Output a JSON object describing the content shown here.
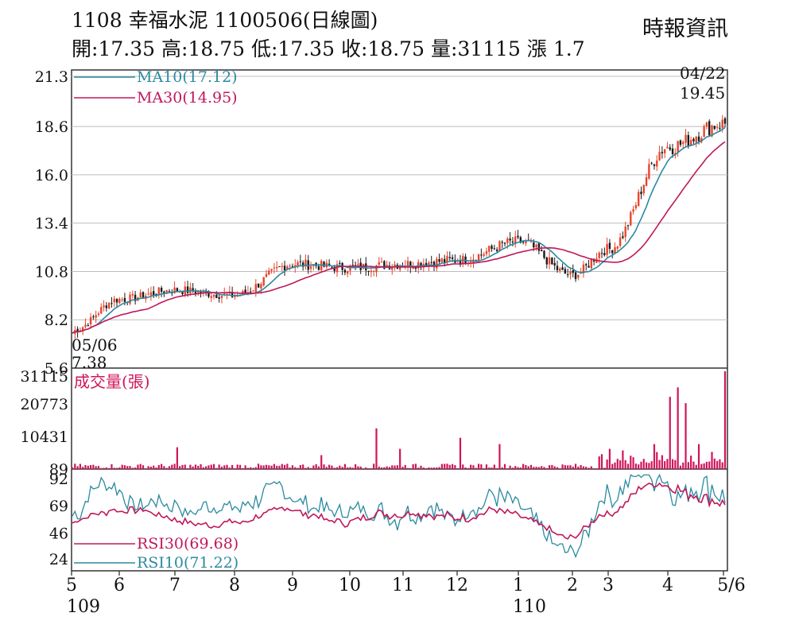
{
  "header": {
    "code": "1108",
    "name": "幸福水泥",
    "date": "1100506",
    "chart_kind": "(日線圖)",
    "source": "時報資訊"
  },
  "quote": {
    "open_label": "開",
    "open": "17.35",
    "high_label": "高",
    "high": "18.75",
    "low_label": "低",
    "low": "17.35",
    "close_label": "收",
    "close": "18.75",
    "volume_label": "量",
    "volume": "31115",
    "change_label": "漲",
    "change": "1.7"
  },
  "colors": {
    "up": "#e8452c",
    "down": "#1a1a1a",
    "ma10": "#2a8aa0",
    "ma30": "#c0185a",
    "volume": "#d0155a",
    "rsi30": "#c0185a",
    "rsi10": "#2a8aa0",
    "grid": "#bdbdbd",
    "frame": "#333333"
  },
  "chart_data": [
    {
      "type": "candlestick",
      "panel": "price",
      "y_ticks": [
        "21.3",
        "18.6",
        "16.0",
        "13.4",
        "10.8",
        "8.2",
        "5.6"
      ],
      "ylim": [
        5.6,
        21.3
      ],
      "grid": true,
      "legend": [
        {
          "key": "ma10",
          "label": "MA10(17.12)"
        },
        {
          "key": "ma30",
          "label": "MA30(14.95)"
        }
      ],
      "annotations": [
        {
          "date": "04/22",
          "value": "19.45",
          "note": "high"
        },
        {
          "date": "05/06",
          "value": "7.38",
          "note": "low"
        }
      ],
      "monthly_close": [
        {
          "month": "5",
          "value": 7.6
        },
        {
          "month": "6",
          "value": 9.3
        },
        {
          "month": "7",
          "value": 9.8
        },
        {
          "month": "8",
          "value": 9.5
        },
        {
          "month": "9",
          "value": 11.2
        },
        {
          "month": "10",
          "value": 11.0
        },
        {
          "month": "11",
          "value": 11.2
        },
        {
          "month": "12",
          "value": 11.4
        },
        {
          "month": "1",
          "value": 12.4
        },
        {
          "month": "2",
          "value": 10.6
        },
        {
          "month": "3",
          "value": 12.0
        },
        {
          "month": "4",
          "value": 17.5
        },
        {
          "month": "5/6",
          "value": 18.75
        }
      ]
    },
    {
      "type": "bar",
      "panel": "volume",
      "label": "成交量(張)",
      "y_ticks": [
        "31115",
        "20773",
        "10431",
        "89"
      ],
      "ylim": [
        89,
        31115
      ],
      "last_value": 31115
    },
    {
      "type": "line",
      "panel": "rsi",
      "y_ticks": [
        "92",
        "69",
        "46",
        "24"
      ],
      "ylim": [
        24,
        92
      ],
      "legend": [
        {
          "key": "rsi30",
          "label": "RSI30(69.68)"
        },
        {
          "key": "rsi10",
          "label": "RSI10(71.22)"
        }
      ],
      "last_values": {
        "rsi30": 69.68,
        "rsi10": 71.22
      }
    }
  ],
  "x_axis": {
    "months": [
      "5",
      "6",
      "7",
      "8",
      "9",
      "10",
      "11",
      "12",
      "1",
      "2",
      "3",
      "4",
      "5/6"
    ],
    "years": [
      {
        "label": "109",
        "at_month": "5"
      },
      {
        "label": "110",
        "at_month": "1"
      }
    ]
  }
}
